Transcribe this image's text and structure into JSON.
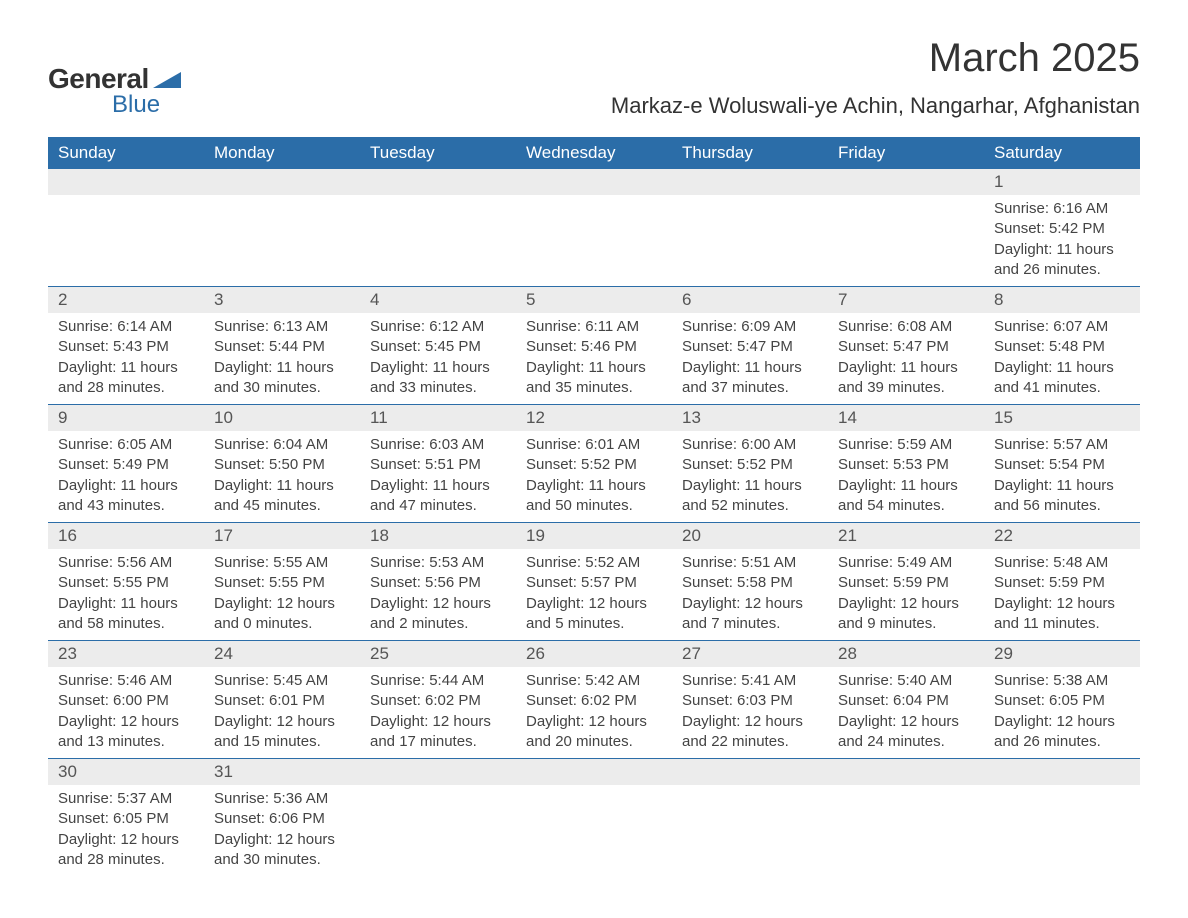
{
  "logo": {
    "word1": "General",
    "word2": "Blue",
    "color_dark": "#333333",
    "color_blue": "#2b6da8"
  },
  "title": "March 2025",
  "location": "Markaz-e Woluswali-ye Achin, Nangarhar, Afghanistan",
  "colors": {
    "header_bg": "#2b6da8",
    "header_fg": "#ffffff",
    "daynum_bg": "#ececec",
    "text": "#444444",
    "row_border": "#2b6da8"
  },
  "fonts": {
    "title_size": 40,
    "location_size": 22,
    "header_size": 17,
    "body_size": 15
  },
  "weekdays": [
    "Sunday",
    "Monday",
    "Tuesday",
    "Wednesday",
    "Thursday",
    "Friday",
    "Saturday"
  ],
  "weeks": [
    [
      null,
      null,
      null,
      null,
      null,
      null,
      {
        "n": "1",
        "sunrise": "6:16 AM",
        "sunset": "5:42 PM",
        "dh": "11",
        "dm": "26"
      }
    ],
    [
      {
        "n": "2",
        "sunrise": "6:14 AM",
        "sunset": "5:43 PM",
        "dh": "11",
        "dm": "28"
      },
      {
        "n": "3",
        "sunrise": "6:13 AM",
        "sunset": "5:44 PM",
        "dh": "11",
        "dm": "30"
      },
      {
        "n": "4",
        "sunrise": "6:12 AM",
        "sunset": "5:45 PM",
        "dh": "11",
        "dm": "33"
      },
      {
        "n": "5",
        "sunrise": "6:11 AM",
        "sunset": "5:46 PM",
        "dh": "11",
        "dm": "35"
      },
      {
        "n": "6",
        "sunrise": "6:09 AM",
        "sunset": "5:47 PM",
        "dh": "11",
        "dm": "37"
      },
      {
        "n": "7",
        "sunrise": "6:08 AM",
        "sunset": "5:47 PM",
        "dh": "11",
        "dm": "39"
      },
      {
        "n": "8",
        "sunrise": "6:07 AM",
        "sunset": "5:48 PM",
        "dh": "11",
        "dm": "41"
      }
    ],
    [
      {
        "n": "9",
        "sunrise": "6:05 AM",
        "sunset": "5:49 PM",
        "dh": "11",
        "dm": "43"
      },
      {
        "n": "10",
        "sunrise": "6:04 AM",
        "sunset": "5:50 PM",
        "dh": "11",
        "dm": "45"
      },
      {
        "n": "11",
        "sunrise": "6:03 AM",
        "sunset": "5:51 PM",
        "dh": "11",
        "dm": "47"
      },
      {
        "n": "12",
        "sunrise": "6:01 AM",
        "sunset": "5:52 PM",
        "dh": "11",
        "dm": "50"
      },
      {
        "n": "13",
        "sunrise": "6:00 AM",
        "sunset": "5:52 PM",
        "dh": "11",
        "dm": "52"
      },
      {
        "n": "14",
        "sunrise": "5:59 AM",
        "sunset": "5:53 PM",
        "dh": "11",
        "dm": "54"
      },
      {
        "n": "15",
        "sunrise": "5:57 AM",
        "sunset": "5:54 PM",
        "dh": "11",
        "dm": "56"
      }
    ],
    [
      {
        "n": "16",
        "sunrise": "5:56 AM",
        "sunset": "5:55 PM",
        "dh": "11",
        "dm": "58"
      },
      {
        "n": "17",
        "sunrise": "5:55 AM",
        "sunset": "5:55 PM",
        "dh": "12",
        "dm": "0"
      },
      {
        "n": "18",
        "sunrise": "5:53 AM",
        "sunset": "5:56 PM",
        "dh": "12",
        "dm": "2"
      },
      {
        "n": "19",
        "sunrise": "5:52 AM",
        "sunset": "5:57 PM",
        "dh": "12",
        "dm": "5"
      },
      {
        "n": "20",
        "sunrise": "5:51 AM",
        "sunset": "5:58 PM",
        "dh": "12",
        "dm": "7"
      },
      {
        "n": "21",
        "sunrise": "5:49 AM",
        "sunset": "5:59 PM",
        "dh": "12",
        "dm": "9"
      },
      {
        "n": "22",
        "sunrise": "5:48 AM",
        "sunset": "5:59 PM",
        "dh": "12",
        "dm": "11"
      }
    ],
    [
      {
        "n": "23",
        "sunrise": "5:46 AM",
        "sunset": "6:00 PM",
        "dh": "12",
        "dm": "13"
      },
      {
        "n": "24",
        "sunrise": "5:45 AM",
        "sunset": "6:01 PM",
        "dh": "12",
        "dm": "15"
      },
      {
        "n": "25",
        "sunrise": "5:44 AM",
        "sunset": "6:02 PM",
        "dh": "12",
        "dm": "17"
      },
      {
        "n": "26",
        "sunrise": "5:42 AM",
        "sunset": "6:02 PM",
        "dh": "12",
        "dm": "20"
      },
      {
        "n": "27",
        "sunrise": "5:41 AM",
        "sunset": "6:03 PM",
        "dh": "12",
        "dm": "22"
      },
      {
        "n": "28",
        "sunrise": "5:40 AM",
        "sunset": "6:04 PM",
        "dh": "12",
        "dm": "24"
      },
      {
        "n": "29",
        "sunrise": "5:38 AM",
        "sunset": "6:05 PM",
        "dh": "12",
        "dm": "26"
      }
    ],
    [
      {
        "n": "30",
        "sunrise": "5:37 AM",
        "sunset": "6:05 PM",
        "dh": "12",
        "dm": "28"
      },
      {
        "n": "31",
        "sunrise": "5:36 AM",
        "sunset": "6:06 PM",
        "dh": "12",
        "dm": "30"
      },
      null,
      null,
      null,
      null,
      null
    ]
  ],
  "labels": {
    "sunrise": "Sunrise: ",
    "sunset": "Sunset: ",
    "daylight1": "Daylight: ",
    "daylight_hours": " hours",
    "daylight_and": "and ",
    "daylight_min": " minutes."
  }
}
